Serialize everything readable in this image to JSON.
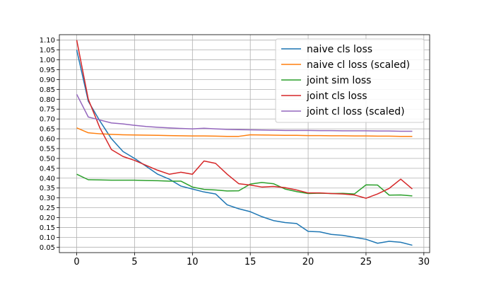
{
  "chart_data": {
    "type": "line",
    "title": "",
    "xlabel": "",
    "ylabel": "",
    "xlim": [
      -1.5,
      30.5
    ],
    "ylim": [
      0.0225,
      1.1275
    ],
    "x_ticks": [
      0,
      5,
      10,
      15,
      20,
      25,
      30
    ],
    "y_ticks": [
      0.05,
      0.1,
      0.15,
      0.2,
      0.25,
      0.3,
      0.35,
      0.4,
      0.45,
      0.5,
      0.55,
      0.6,
      0.65,
      0.7,
      0.75,
      0.8,
      0.85,
      0.9,
      0.95,
      1.0,
      1.05,
      1.1
    ],
    "grid": true,
    "legend_position": "top-right",
    "x": [
      0,
      1,
      2,
      3,
      4,
      5,
      6,
      7,
      8,
      9,
      10,
      11,
      12,
      13,
      14,
      15,
      16,
      17,
      18,
      19,
      20,
      21,
      22,
      23,
      24,
      25,
      26,
      27,
      28,
      29
    ],
    "series": [
      {
        "name": "naive cls loss",
        "color": "#1f77b4",
        "values": [
          1.05,
          0.79,
          0.69,
          0.6,
          0.535,
          0.5,
          0.46,
          0.42,
          0.395,
          0.36,
          0.345,
          0.33,
          0.32,
          0.265,
          0.245,
          0.23,
          0.205,
          0.185,
          0.175,
          0.17,
          0.13,
          0.128,
          0.115,
          0.11,
          0.1,
          0.09,
          0.07,
          0.08,
          0.075,
          0.06
        ]
      },
      {
        "name": "naive cl loss (scaled)",
        "color": "#ff7f0e",
        "values": [
          0.655,
          0.63,
          0.625,
          0.622,
          0.62,
          0.619,
          0.618,
          0.617,
          0.616,
          0.615,
          0.614,
          0.614,
          0.613,
          0.612,
          0.612,
          0.62,
          0.619,
          0.618,
          0.617,
          0.617,
          0.616,
          0.616,
          0.615,
          0.615,
          0.614,
          0.614,
          0.613,
          0.613,
          0.612,
          0.612
        ]
      },
      {
        "name": "joint sim loss",
        "color": "#2ca02c",
        "values": [
          0.42,
          0.392,
          0.391,
          0.39,
          0.39,
          0.39,
          0.388,
          0.387,
          0.385,
          0.385,
          0.355,
          0.343,
          0.34,
          0.335,
          0.336,
          0.37,
          0.378,
          0.372,
          0.345,
          0.332,
          0.322,
          0.324,
          0.322,
          0.323,
          0.32,
          0.366,
          0.365,
          0.314,
          0.315,
          0.31
        ]
      },
      {
        "name": "joint cls loss",
        "color": "#d62728",
        "values": [
          1.1,
          0.8,
          0.655,
          0.545,
          0.51,
          0.49,
          0.465,
          0.44,
          0.42,
          0.43,
          0.42,
          0.487,
          0.475,
          0.42,
          0.372,
          0.365,
          0.355,
          0.358,
          0.352,
          0.34,
          0.325,
          0.325,
          0.322,
          0.32,
          0.315,
          0.298,
          0.32,
          0.348,
          0.395,
          0.345
        ]
      },
      {
        "name": "joint cl loss (scaled)",
        "color": "#9467bd",
        "values": [
          0.825,
          0.71,
          0.695,
          0.68,
          0.675,
          0.668,
          0.662,
          0.658,
          0.655,
          0.652,
          0.65,
          0.653,
          0.65,
          0.647,
          0.646,
          0.645,
          0.644,
          0.643,
          0.642,
          0.642,
          0.642,
          0.641,
          0.641,
          0.64,
          0.64,
          0.64,
          0.639,
          0.639,
          0.638,
          0.638
        ]
      }
    ]
  }
}
